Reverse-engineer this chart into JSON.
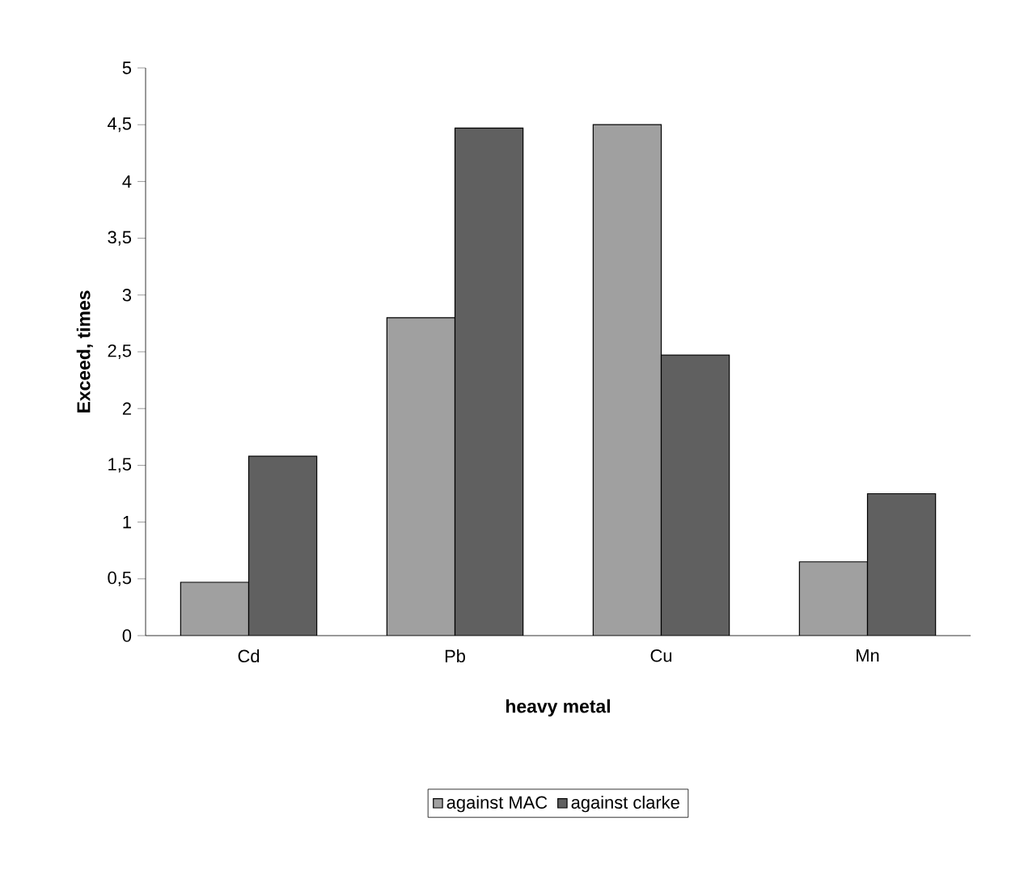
{
  "chart_data": {
    "type": "bar",
    "xlabel": "heavy metal",
    "ylabel": "Exceed, times",
    "categories": [
      "Cd",
      "Pb",
      "Cu",
      "Mn"
    ],
    "series": [
      {
        "name": "against MAC",
        "color": "#a0a0a0",
        "values": [
          0.47,
          2.8,
          4.5,
          0.65
        ]
      },
      {
        "name": "against clarke",
        "color": "#606060",
        "values": [
          1.58,
          4.47,
          2.47,
          1.25
        ]
      }
    ],
    "ylim": [
      0,
      5
    ],
    "yticks": [
      0,
      {
        "value": 0.5,
        "label": "0,5"
      },
      1,
      {
        "value": 1.5,
        "label": "1,5"
      },
      2,
      {
        "value": 2.5,
        "label": "2,5"
      },
      3,
      {
        "value": 3.5,
        "label": "3,5"
      },
      4,
      {
        "value": 4.5,
        "label": "4,5"
      },
      5
    ],
    "grid": false,
    "legend": "bottom"
  }
}
